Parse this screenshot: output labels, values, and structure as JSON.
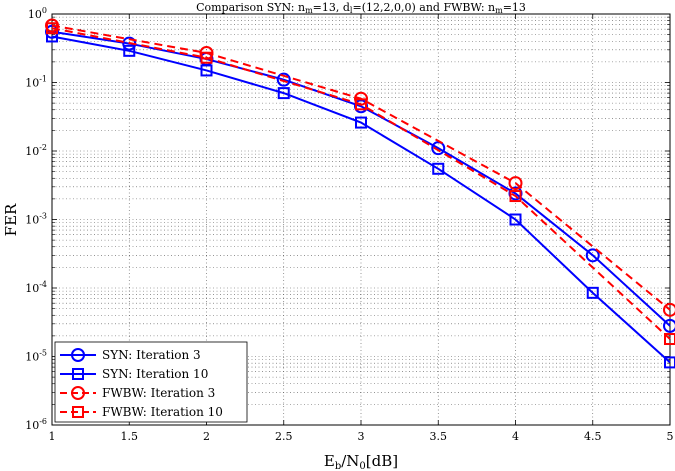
{
  "chart_data": {
    "type": "line",
    "title": "Comparison SYN: n_m=13, d_l=(12,2,0,0) and FWBW: n_m=13",
    "title_parts": {
      "main": "Comparison SYN: n",
      "sub1": "m",
      "mid1": "=13, d",
      "sub2": "l",
      "mid2": "=(12,2,0,0) and FWBW: n",
      "sub3": "m",
      "end": "=13"
    },
    "xlabel": "E_b/N_0[dB]",
    "xlabel_parts": {
      "a": "E",
      "sub_a": "b",
      "b": "/N",
      "sub_b": "0",
      "c": "[dB]"
    },
    "ylabel": "FER",
    "xlim": [
      1,
      5
    ],
    "ylim": [
      1e-06,
      1
    ],
    "yscale": "log",
    "grid": true,
    "legend_position": "bottom-left",
    "x_ticks": [
      1,
      1.5,
      2,
      2.5,
      3,
      3.5,
      4,
      4.5,
      5
    ],
    "x_tick_labels": [
      "1",
      "1.5",
      "2",
      "2.5",
      "3",
      "3.5",
      "4",
      "4.5",
      "5"
    ],
    "y_tick_exponents": [
      0,
      -1,
      -2,
      -3,
      -4,
      -5,
      -6
    ],
    "y_tick_labels": [
      {
        "base": "10",
        "exp": "0"
      },
      {
        "base": "10",
        "exp": "-1"
      },
      {
        "base": "10",
        "exp": "-2"
      },
      {
        "base": "10",
        "exp": "-3"
      },
      {
        "base": "10",
        "exp": "-4"
      },
      {
        "base": "10",
        "exp": "-5"
      },
      {
        "base": "10",
        "exp": "-6"
      }
    ],
    "series": [
      {
        "name": "SYN: Iteration 3",
        "color": "#0000ff",
        "dash": "solid",
        "marker": "circle",
        "x": [
          1,
          1.5,
          2,
          2.5,
          3,
          3.5,
          4,
          4.5,
          5
        ],
        "y": [
          0.55,
          0.37,
          0.22,
          0.11,
          0.045,
          0.011,
          0.0024,
          0.0003,
          2.8e-05
        ]
      },
      {
        "name": "SYN: Iteration 10",
        "color": "#0000ff",
        "dash": "solid",
        "marker": "square",
        "x": [
          1,
          1.5,
          2,
          2.5,
          3,
          3.5,
          4,
          4.5,
          5
        ],
        "y": [
          0.47,
          0.29,
          0.15,
          0.07,
          0.026,
          0.0055,
          0.001,
          8.5e-05,
          8.2e-06
        ]
      },
      {
        "name": "FWBW: Iteration 3",
        "color": "#ff0000",
        "dash": "dashed",
        "marker": "circle",
        "x": [
          1,
          2,
          3,
          4,
          5
        ],
        "y": [
          0.68,
          0.27,
          0.058,
          0.0034,
          4.8e-05
        ]
      },
      {
        "name": "FWBW: Iteration 10",
        "color": "#ff0000",
        "dash": "dashed",
        "marker": "square",
        "x": [
          1,
          2,
          3,
          4,
          5
        ],
        "y": [
          0.62,
          0.23,
          0.048,
          0.0022,
          1.8e-05
        ]
      }
    ]
  }
}
